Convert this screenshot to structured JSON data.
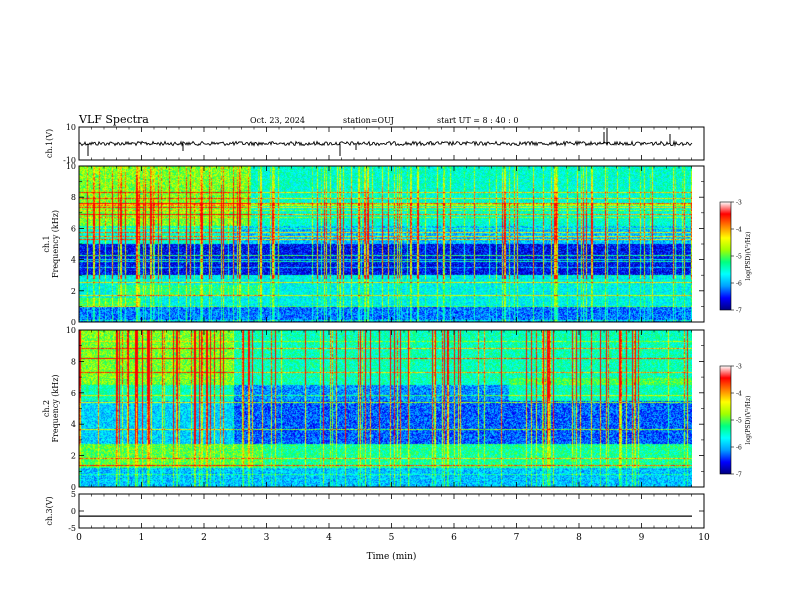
{
  "header": {
    "title": "VLF Spectra",
    "date": "Oct. 23, 2024",
    "station": "station=OUJ",
    "start": "start  UT =   8 : 40 : 0"
  },
  "chart_data": [
    {
      "type": "line",
      "panel": "ch1-waveform",
      "ylabel": "ch.1(V)",
      "ylim": [
        -10,
        10
      ],
      "yticks": [
        10,
        -10
      ],
      "xlim": [
        0,
        10
      ],
      "series": [
        {
          "mean_level": 0,
          "values": [
            0.2,
            -0.3,
            0.1,
            -0.2,
            0.3,
            -0.1,
            0.0,
            0.2,
            -0.3,
            0.1,
            -0.2,
            0.3,
            -0.1,
            0.2,
            -0.2,
            0.1,
            0.0,
            -0.1,
            0.2,
            -0.3,
            0.1
          ]
        }
      ]
    },
    {
      "type": "heatmap",
      "panel": "ch1-spectrogram",
      "ylabel": "ch.1\nFrequency (kHz)",
      "xlim": [
        0,
        10
      ],
      "ylim": [
        0,
        10
      ],
      "yticks": [
        0,
        2,
        4,
        6,
        8,
        10
      ],
      "colorbar": {
        "label": "log(PSD)(V²/Hz)",
        "range": [
          -7,
          -3
        ],
        "ticks": [
          -3,
          -4,
          -5,
          -6,
          -7
        ]
      }
    },
    {
      "type": "heatmap",
      "panel": "ch2-spectrogram",
      "ylabel": "ch.2\nFrequency (kHz)",
      "xlim": [
        0,
        10
      ],
      "ylim": [
        0,
        10
      ],
      "yticks": [
        0,
        2,
        4,
        6,
        8,
        10
      ],
      "colorbar": {
        "label": "log(PSD)(V²/Hz)",
        "range": [
          -7,
          -3
        ],
        "ticks": [
          -3,
          -4,
          -5,
          -6,
          -7
        ]
      }
    },
    {
      "type": "line",
      "panel": "ch3-waveform",
      "ylabel": "ch.3(V)",
      "ylim": [
        -5,
        5
      ],
      "yticks": [
        5,
        0,
        -5
      ],
      "xlim": [
        0,
        10
      ],
      "series": [
        {
          "mean_level": -1.5,
          "values": [
            -1.5,
            -1.5
          ]
        }
      ]
    }
  ],
  "xaxis": {
    "label": "Time  (min)",
    "ticks": [
      "0",
      "1",
      "2",
      "3",
      "4",
      "5",
      "6",
      "7",
      "8",
      "9",
      "10"
    ]
  },
  "colors": {
    "colormap": [
      "#00007f",
      "#0000ff",
      "#00a0ff",
      "#00ffff",
      "#00ff80",
      "#a0ff00",
      "#ffff00",
      "#ff8000",
      "#ff0000",
      "#ffffff"
    ]
  }
}
